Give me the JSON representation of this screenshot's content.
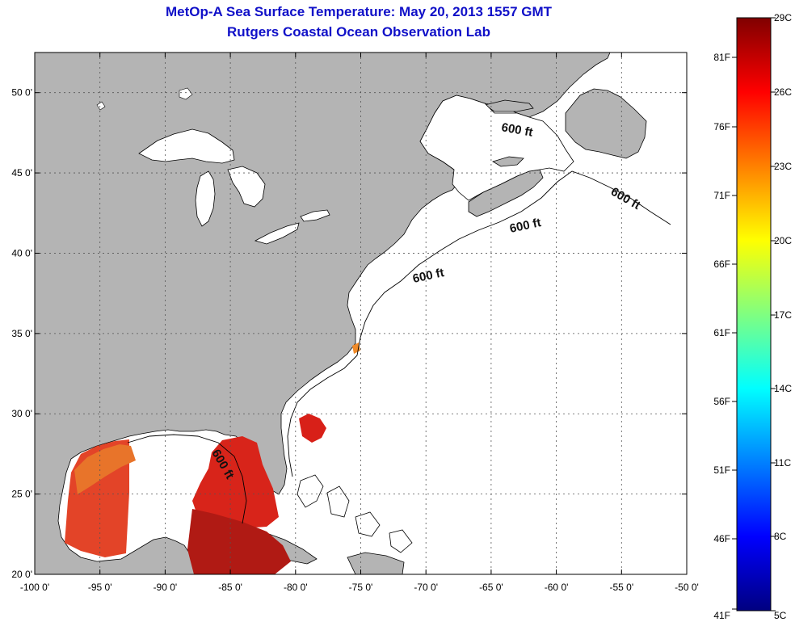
{
  "title": {
    "line1": "MetOp-A Sea Surface Temperature:  May 20, 2013 1557 GMT",
    "line2": "Rutgers Coastal Ocean Observation Lab"
  },
  "map": {
    "lon_range": [
      -100,
      -50
    ],
    "lat_range": [
      20,
      52.5
    ],
    "lon_ticks": [
      "-100 0'",
      "-95 0'",
      "-90 0'",
      "-85 0'",
      "-80 0'",
      "-75 0'",
      "-70 0'",
      "-65 0'",
      "-60 0'",
      "-55 0'",
      "-50 0'"
    ],
    "lat_ticks": [
      "50 0'",
      "45 0'",
      "40 0'",
      "35 0'",
      "30 0'",
      "25 0'",
      "20 0'"
    ],
    "contour_label": "600 ft",
    "colors": {
      "land": "#b4b4b4",
      "ocean": "#ffffff",
      "grid": "#555555"
    },
    "sst_patches": [
      {
        "name": "western-gulf",
        "color": "#e23a1c"
      },
      {
        "name": "western-gulf-orange",
        "color": "#e8742a"
      },
      {
        "name": "eastern-gulf",
        "color": "#d8241a"
      },
      {
        "name": "yucatan-channel",
        "color": "#b01a14"
      },
      {
        "name": "atlantic-offshore",
        "color": "#d82018"
      },
      {
        "name": "cape-hatteras",
        "color": "#f08a28"
      }
    ]
  },
  "colorbar": {
    "celsius": [
      "29C",
      "26C",
      "23C",
      "20C",
      "17C",
      "14C",
      "11C",
      "8C",
      "5C"
    ],
    "fahrenheit": [
      "81F",
      "76F",
      "71F",
      "66F",
      "61F",
      "56F",
      "51F",
      "46F",
      "41F"
    ],
    "color_stops": [
      "#800000",
      "#ff0000",
      "#ff8000",
      "#ffff00",
      "#80ff80",
      "#00ffff",
      "#0080ff",
      "#0000ff",
      "#000080"
    ]
  }
}
